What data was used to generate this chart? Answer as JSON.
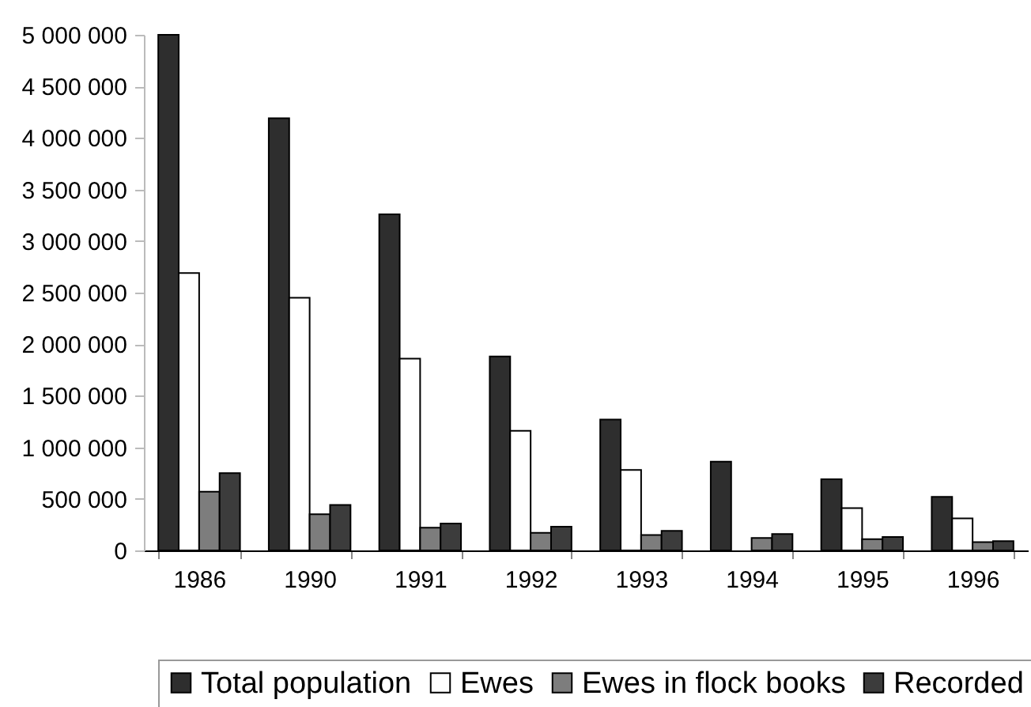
{
  "chart_data": {
    "type": "bar",
    "categories": [
      "1986",
      "1990",
      "1991",
      "1992",
      "1993",
      "1994",
      "1995",
      "1996"
    ],
    "series": [
      {
        "name": "Total population",
        "color": "#2e2e2e",
        "values": [
          5000000,
          4190000,
          3260000,
          1880000,
          1270000,
          860000,
          690000,
          520000
        ]
      },
      {
        "name": "Ewes",
        "color": "#ffffff",
        "values": [
          2690000,
          2450000,
          1860000,
          1160000,
          780000,
          null,
          410000,
          310000
        ]
      },
      {
        "name": "Ewes in flock books",
        "color": "#7d7d7d",
        "values": [
          570000,
          350000,
          220000,
          170000,
          150000,
          120000,
          110000,
          80000
        ]
      },
      {
        "name": "Recorded",
        "color": "#3c3c3c",
        "values": [
          750000,
          440000,
          260000,
          230000,
          190000,
          160000,
          130000,
          90000
        ]
      }
    ],
    "ylim": [
      0,
      5000000
    ],
    "yticks": [
      {
        "value": 0,
        "label": "0"
      },
      {
        "value": 500000,
        "label": "500 000"
      },
      {
        "value": 1000000,
        "label": "1 000 000"
      },
      {
        "value": 1500000,
        "label": "1 500 000"
      },
      {
        "value": 2000000,
        "label": "2 000 000"
      },
      {
        "value": 2500000,
        "label": "2 500 000"
      },
      {
        "value": 3000000,
        "label": "3 000 000"
      },
      {
        "value": 3500000,
        "label": "3 500 000"
      },
      {
        "value": 4000000,
        "label": "4 000 000"
      },
      {
        "value": 4500000,
        "label": "4 500 000"
      },
      {
        "value": 5000000,
        "label": "5 000 000"
      }
    ],
    "grid": false,
    "legend": "bottom"
  }
}
